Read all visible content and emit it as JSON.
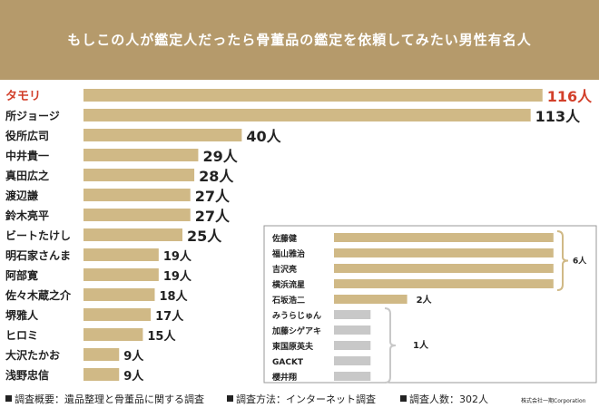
{
  "header": {
    "title": "もしこの人が鑑定人だったら骨董品の鑑定を依頼してみたい男性有名人"
  },
  "colors": {
    "header_bg": "#b59a6b",
    "bar": "#d0b986",
    "bar_gray": "#c8c8c8",
    "highlight": "#d23f2a",
    "text": "#222222",
    "inset_border": "#999999"
  },
  "chart_data": {
    "type": "bar",
    "orientation": "horizontal",
    "unit": "人",
    "main": {
      "categories": [
        "タモリ",
        "所ジョージ",
        "役所広司",
        "中井貴一",
        "真田広之",
        "渡辺謙",
        "鈴木亮平",
        "ビートたけし",
        "明石家さんま",
        "阿部寛",
        "佐々木蔵之介",
        "堺雅人",
        "ヒロミ",
        "大沢たかお",
        "浅野忠信"
      ],
      "values": [
        116,
        113,
        40,
        29,
        28,
        27,
        27,
        25,
        19,
        19,
        18,
        17,
        15,
        9,
        9
      ],
      "value_labels": [
        "116人",
        "113人",
        "40人",
        "29人",
        "28人",
        "27人",
        "27人",
        "25人",
        "19人",
        "19人",
        "18人",
        "17人",
        "15人",
        "9人",
        "9人"
      ],
      "highlight_index": 0
    },
    "inset": {
      "categories": [
        "佐藤健",
        "福山雅治",
        "吉沢亮",
        "横浜流星",
        "石坂浩二",
        "みうらじゅん",
        "加藤シゲアキ",
        "東国原英夫",
        "GACKT",
        "櫻井翔"
      ],
      "values": [
        6,
        6,
        6,
        6,
        2,
        1,
        1,
        1,
        1,
        1
      ],
      "group_labels": [
        {
          "label": "6人",
          "value": 6
        },
        {
          "label": "2人",
          "value": 2
        },
        {
          "label": "1人",
          "value": 1
        }
      ]
    }
  },
  "footer": {
    "overview": "調査概要：遺品整理と骨董品に関する調査",
    "method": "調査方法：インターネット調査",
    "respondents": "調査人数：302人",
    "credit": "株式会社一期Corporation"
  }
}
